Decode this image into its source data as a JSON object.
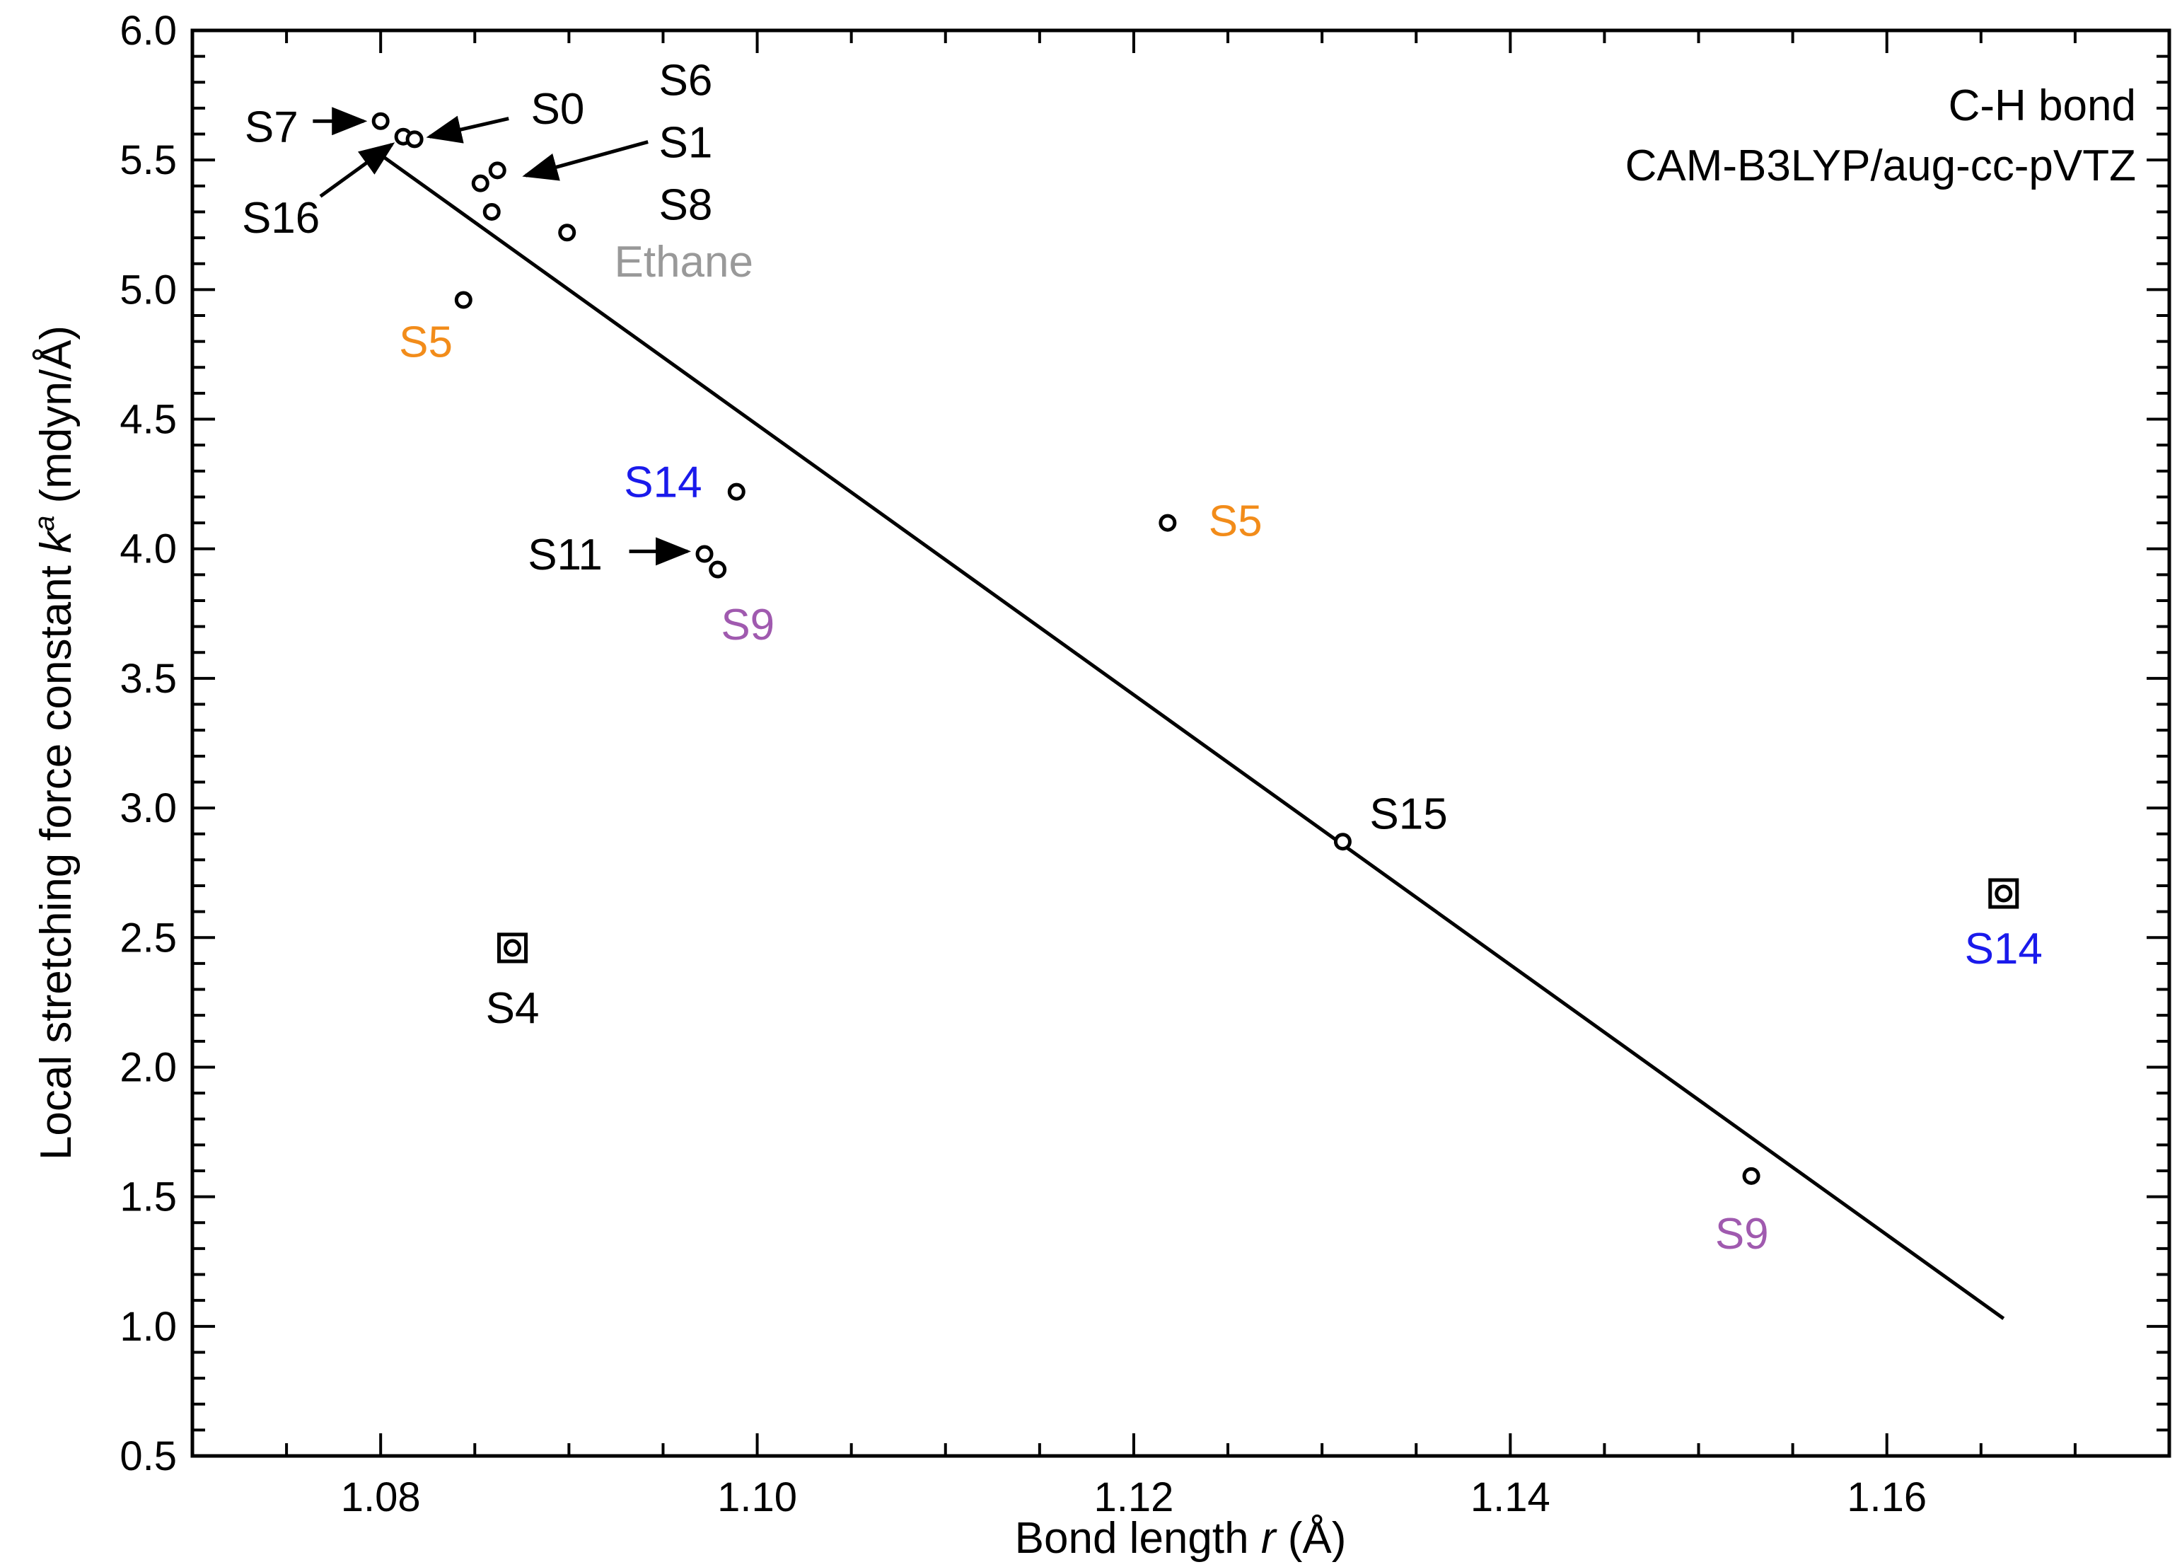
{
  "chart_data": {
    "type": "scatter",
    "title": "",
    "annotation": {
      "line1": "C-H bond",
      "line2": "CAM-B3LYP/aug-cc-pVTZ"
    },
    "xlabel": {
      "prefix": "Bond length ",
      "var": "r",
      "suffix": " (Å)"
    },
    "ylabel": {
      "prefix": "Local stretching force constant ",
      "var": "k",
      "sup": "a",
      "suffix": " (mdyn/Å)"
    },
    "xlim": [
      1.07,
      1.175
    ],
    "ylim": [
      0.5,
      6.0
    ],
    "x_major_ticks": [
      1.08,
      1.1,
      1.12,
      1.14,
      1.16
    ],
    "x_tick_labels": [
      "1.08",
      "1.10",
      "1.12",
      "1.14",
      "1.16"
    ],
    "x_minor_step": 0.005,
    "y_major_ticks": [
      0.5,
      1.0,
      1.5,
      2.0,
      2.5,
      3.0,
      3.5,
      4.0,
      4.5,
      5.0,
      5.5,
      6.0
    ],
    "y_tick_labels": [
      "0.5",
      "1.0",
      "1.5",
      "2.0",
      "2.5",
      "3.0",
      "3.5",
      "4.0",
      "4.5",
      "5.0",
      "5.5",
      "6.0"
    ],
    "y_minor_step": 0.1,
    "grid": false,
    "colors": {
      "black": "#000000",
      "orange": "#f28c1a",
      "blue": "#1a1aeb",
      "purple": "#a05aaf",
      "gray": "#999999"
    },
    "fit_line": {
      "x": [
        1.08,
        1.1662
      ],
      "y": [
        5.52,
        1.03
      ]
    },
    "points": [
      {
        "x": 1.08,
        "y": 5.65,
        "boxed": false
      },
      {
        "x": 1.0812,
        "y": 5.59,
        "boxed": false
      },
      {
        "x": 1.0818,
        "y": 5.58,
        "boxed": false
      },
      {
        "x": 1.0853,
        "y": 5.41,
        "boxed": false
      },
      {
        "x": 1.0862,
        "y": 5.46,
        "boxed": false
      },
      {
        "x": 1.0859,
        "y": 5.3,
        "boxed": false
      },
      {
        "x": 1.0899,
        "y": 5.22,
        "boxed": false
      },
      {
        "x": 1.0844,
        "y": 4.96,
        "boxed": false
      },
      {
        "x": 1.0989,
        "y": 4.22,
        "boxed": false
      },
      {
        "x": 1.0972,
        "y": 3.98,
        "boxed": false
      },
      {
        "x": 1.0979,
        "y": 3.92,
        "boxed": false
      },
      {
        "x": 1.1218,
        "y": 4.1,
        "boxed": false
      },
      {
        "x": 1.1311,
        "y": 2.87,
        "boxed": false
      },
      {
        "x": 1.1528,
        "y": 1.58,
        "boxed": false
      },
      {
        "x": 1.087,
        "y": 2.46,
        "boxed": true
      },
      {
        "x": 1.1662,
        "y": 2.67,
        "boxed": true
      }
    ],
    "labels": [
      {
        "text": "S7",
        "color": "black",
        "x": 1.0742,
        "y": 5.63
      },
      {
        "text": "S16",
        "color": "black",
        "x": 1.0747,
        "y": 5.28
      },
      {
        "text": "S0",
        "color": "black",
        "x": 1.0894,
        "y": 5.7
      },
      {
        "text": "S6",
        "color": "black",
        "x": 1.0962,
        "y": 5.81
      },
      {
        "text": "S1",
        "color": "black",
        "x": 1.0962,
        "y": 5.57
      },
      {
        "text": "S8",
        "color": "black",
        "x": 1.0962,
        "y": 5.33
      },
      {
        "text": "Ethane",
        "color": "gray",
        "x": 1.0961,
        "y": 5.11
      },
      {
        "text": "S5",
        "color": "orange",
        "x": 1.0824,
        "y": 4.8
      },
      {
        "text": "S14",
        "color": "blue",
        "x": 1.095,
        "y": 4.26
      },
      {
        "text": "S11",
        "color": "black",
        "x": 1.0898,
        "y": 3.98
      },
      {
        "text": "S9",
        "color": "purple",
        "x": 1.0995,
        "y": 3.71
      },
      {
        "text": "S5",
        "color": "orange",
        "x": 1.1254,
        "y": 4.11
      },
      {
        "text": "S15",
        "color": "black",
        "x": 1.1346,
        "y": 2.98
      },
      {
        "text": "S14",
        "color": "blue",
        "x": 1.1662,
        "y": 2.46
      },
      {
        "text": "S9",
        "color": "purple",
        "x": 1.1523,
        "y": 1.36
      },
      {
        "text": "S4",
        "color": "black",
        "x": 1.087,
        "y": 2.23
      }
    ],
    "arrows": [
      {
        "from": [
          1.0764,
          5.65
        ],
        "to": [
          1.0791,
          5.65
        ]
      },
      {
        "from": [
          1.0868,
          5.66
        ],
        "to": [
          1.0826,
          5.59
        ]
      },
      {
        "from": [
          1.0942,
          5.57
        ],
        "to": [
          1.0877,
          5.44
        ]
      },
      {
        "from": [
          1.0768,
          5.36
        ],
        "to": [
          1.0806,
          5.56
        ]
      },
      {
        "from": [
          1.0932,
          3.99
        ],
        "to": [
          1.0963,
          3.99
        ]
      }
    ]
  }
}
